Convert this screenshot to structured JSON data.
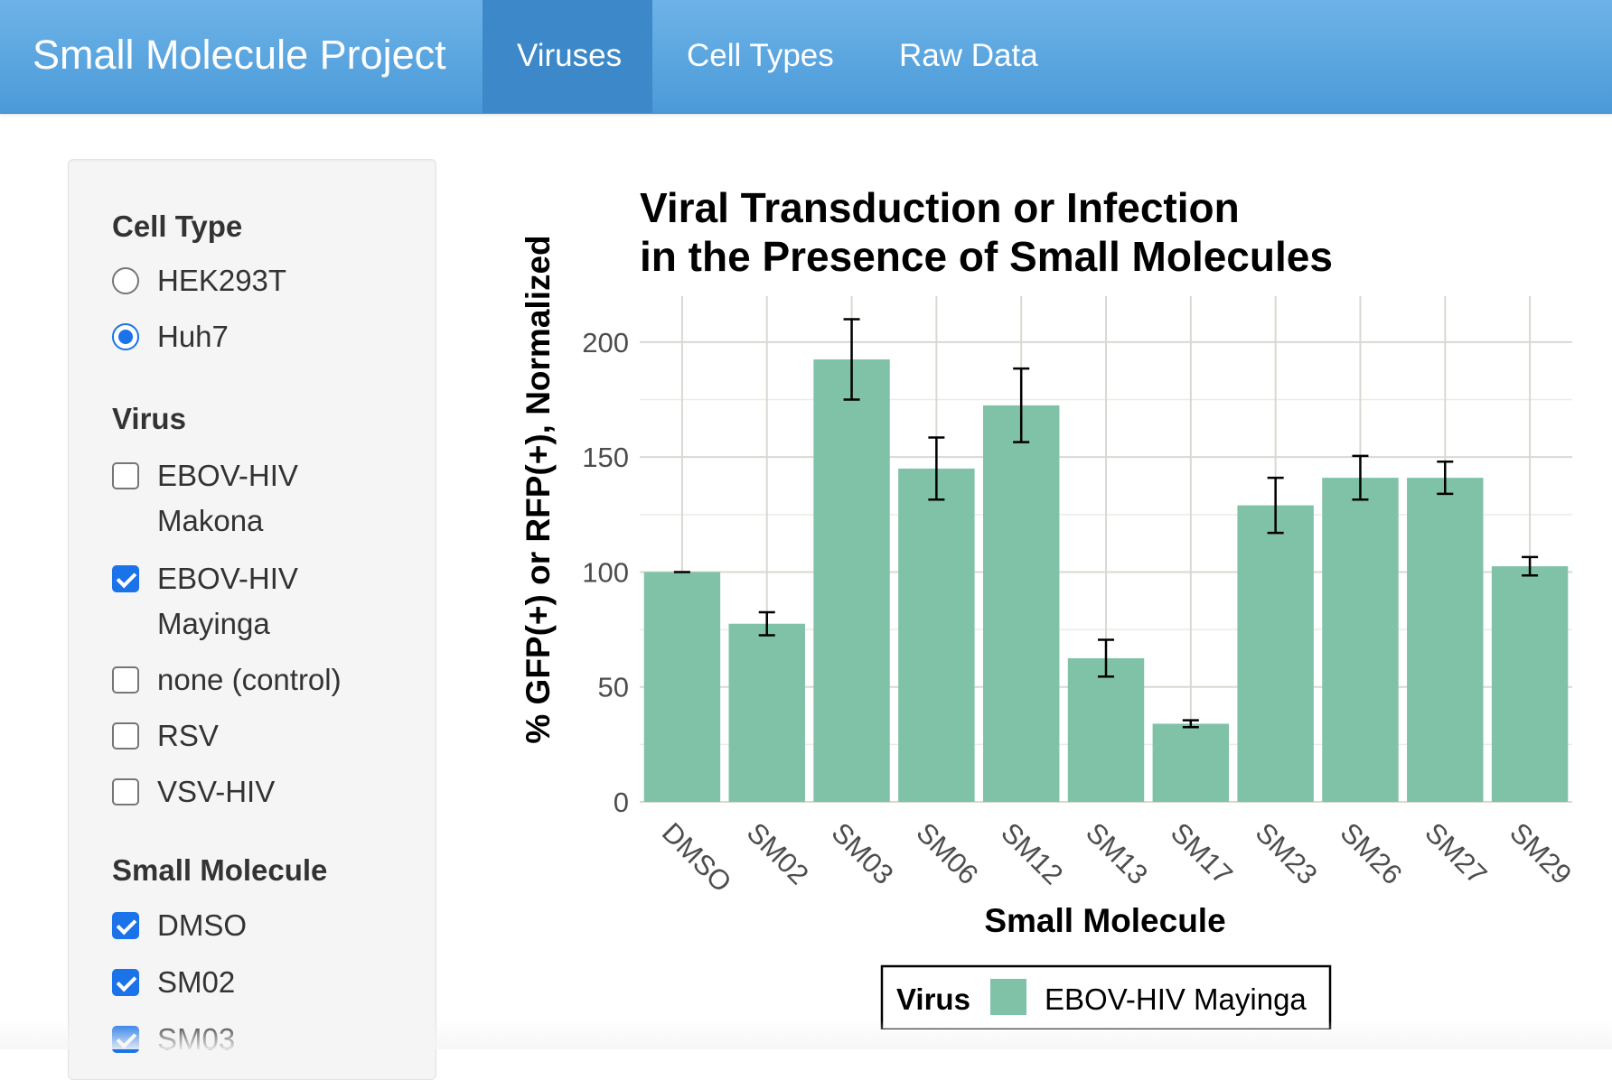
{
  "navbar": {
    "brand": "Small Molecule Project",
    "tabs": [
      {
        "label": "Viruses",
        "active": true
      },
      {
        "label": "Cell Types",
        "active": false
      },
      {
        "label": "Raw Data",
        "active": false
      }
    ]
  },
  "sidebar": {
    "cell_type": {
      "label": "Cell Type",
      "options": [
        {
          "label": "HEK293T",
          "selected": false
        },
        {
          "label": "Huh7",
          "selected": true
        }
      ]
    },
    "virus": {
      "label": "Virus",
      "options": [
        {
          "label_line1": "EBOV-HIV",
          "label_line2": "Makona",
          "checked": false
        },
        {
          "label_line1": "EBOV-HIV",
          "label_line2": "Mayinga",
          "checked": true
        },
        {
          "label_line1": "none (control)",
          "checked": false
        },
        {
          "label_line1": "RSV",
          "checked": false
        },
        {
          "label_line1": "VSV-HIV",
          "checked": false
        }
      ]
    },
    "small_molecule": {
      "label": "Small Molecule",
      "options": [
        {
          "label": "DMSO",
          "checked": true
        },
        {
          "label": "SM02",
          "checked": true
        },
        {
          "label": "SM03",
          "checked": true
        }
      ]
    }
  },
  "colors": {
    "bar": "#7fc2a8",
    "accent": "#1a73e8",
    "navbar": "#5aa7e0"
  },
  "chart_data": {
    "type": "bar",
    "title_line1": "Viral Transduction or Infection",
    "title_line2": "in the Presence of Small Molecules",
    "xlabel": "Small Molecule",
    "ylabel": "% GFP(+) or RFP(+), Normalized",
    "categories": [
      "DMSO",
      "SM02",
      "SM03",
      "SM06",
      "SM12",
      "SM13",
      "SM17",
      "SM23",
      "SM26",
      "SM27",
      "SM29"
    ],
    "series": [
      {
        "name": "EBOV-HIV Mayinga",
        "values": [
          100,
          77.5,
          192.5,
          145,
          172.5,
          62.5,
          34,
          129,
          141,
          141,
          102.5
        ],
        "error": [
          0,
          5,
          17.5,
          13.5,
          16,
          8,
          1.5,
          12,
          9.5,
          7,
          4
        ]
      }
    ],
    "ylim": [
      0,
      220
    ],
    "yticks": [
      0,
      50,
      100,
      150,
      200
    ],
    "grid": true,
    "legend_title": "Virus",
    "legend_position": "bottom"
  }
}
